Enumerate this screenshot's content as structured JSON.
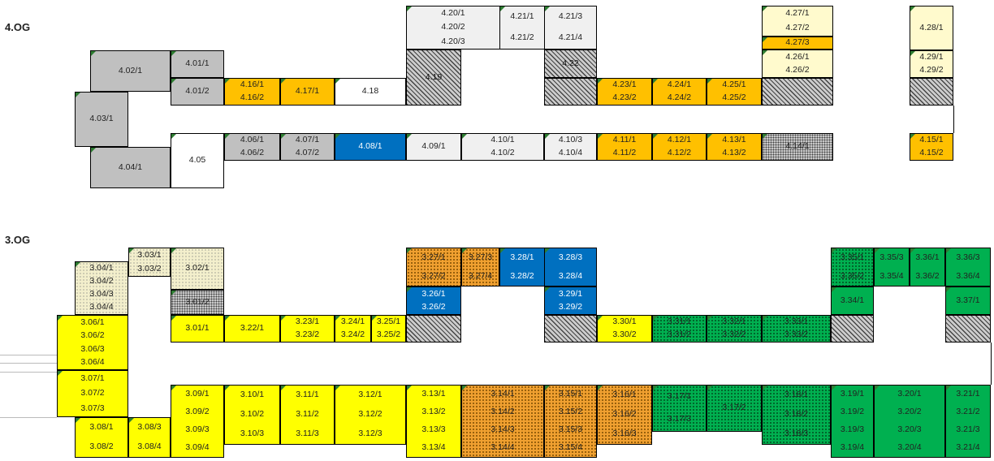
{
  "floors": [
    {
      "id": "4og",
      "label": "4.OG"
    },
    {
      "id": "3og",
      "label": "3.OG"
    }
  ],
  "rooms": [
    {
      "id": "r4_20",
      "labels": [
        "4.20/1",
        "4.20/2",
        "4.20/3"
      ]
    },
    {
      "id": "r4_21a",
      "labels": [
        "4.21/1",
        "4.21/2"
      ]
    },
    {
      "id": "r4_21b",
      "labels": [
        "4.21/3",
        "4.21/4"
      ]
    },
    {
      "id": "r4_27_12",
      "labels": [
        "4.27/1",
        "4.27/2"
      ]
    },
    {
      "id": "r4_27_3",
      "labels": [
        "4.27/3"
      ]
    },
    {
      "id": "r4_26",
      "labels": [
        "4.26/1",
        "4.26/2"
      ]
    },
    {
      "id": "r4_28",
      "labels": [
        "4.28/1"
      ]
    },
    {
      "id": "r4_29",
      "labels": [
        "4.29/1",
        "4.29/2"
      ]
    },
    {
      "id": "r4_02",
      "labels": [
        "4.02/1"
      ]
    },
    {
      "id": "r4_01_1",
      "labels": [
        "4.01/1"
      ]
    },
    {
      "id": "r4_01_2",
      "labels": [
        "4.01/2"
      ]
    },
    {
      "id": "r4_19",
      "labels": [
        "4.19"
      ]
    },
    {
      "id": "r4_22",
      "labels": [
        "4.22"
      ]
    },
    {
      "id": "r4_16",
      "labels": [
        "4.16/1",
        "4.16/2"
      ]
    },
    {
      "id": "r4_17",
      "labels": [
        "4.17/1"
      ]
    },
    {
      "id": "r4_18",
      "labels": [
        "4.18"
      ]
    },
    {
      "id": "r4_23",
      "labels": [
        "4.23/1",
        "4.23/2"
      ]
    },
    {
      "id": "r4_24",
      "labels": [
        "4.24/1",
        "4.24/2"
      ]
    },
    {
      "id": "r4_25",
      "labels": [
        "4.25/1",
        "4.25/2"
      ]
    },
    {
      "id": "r4_03",
      "labels": [
        "4.03/1"
      ]
    },
    {
      "id": "r4_06",
      "labels": [
        "4.06/1",
        "4.06/2"
      ]
    },
    {
      "id": "r4_07",
      "labels": [
        "4.07/1",
        "4.07/2"
      ]
    },
    {
      "id": "r4_08",
      "labels": [
        "4.08/1"
      ]
    },
    {
      "id": "r4_09",
      "labels": [
        "4.09/1"
      ]
    },
    {
      "id": "r4_10a",
      "labels": [
        "4.10/1",
        "4.10/2"
      ]
    },
    {
      "id": "r4_10b",
      "labels": [
        "4.10/3",
        "4.10/4"
      ]
    },
    {
      "id": "r4_11",
      "labels": [
        "4.11/1",
        "4.11/2"
      ]
    },
    {
      "id": "r4_12",
      "labels": [
        "4.12/1",
        "4.12/2"
      ]
    },
    {
      "id": "r4_13",
      "labels": [
        "4.13/1",
        "4.13/2"
      ]
    },
    {
      "id": "r4_14",
      "labels": [
        "4.14/1"
      ]
    },
    {
      "id": "r4_15",
      "labels": [
        "4.15/1",
        "4.15/2"
      ]
    },
    {
      "id": "r4_04",
      "labels": [
        "4.04/1"
      ]
    },
    {
      "id": "r4_05",
      "labels": [
        "4.05"
      ]
    },
    {
      "id": "r3_03",
      "labels": [
        "3.03/1",
        "3.03/2"
      ]
    },
    {
      "id": "r3_02",
      "labels": [
        "3.02/1"
      ]
    },
    {
      "id": "r3_04",
      "labels": [
        "3.04/1",
        "3.04/2",
        "3.04/3",
        "3.04/4"
      ]
    },
    {
      "id": "r3_01_2",
      "labels": [
        "3.01/2"
      ]
    },
    {
      "id": "r3_27a",
      "labels": [
        "3.27/1",
        "3.27/2"
      ]
    },
    {
      "id": "r3_27b",
      "labels": [
        "3.27/3",
        "3.27/4"
      ]
    },
    {
      "id": "r3_28a",
      "labels": [
        "3.28/1",
        "3.28/2"
      ]
    },
    {
      "id": "r3_28b",
      "labels": [
        "3.28/3",
        "3.28/4"
      ]
    },
    {
      "id": "r3_26",
      "labels": [
        "3.26/1",
        "3.26/2"
      ]
    },
    {
      "id": "r3_29",
      "labels": [
        "3.29/1",
        "3.29/2"
      ]
    },
    {
      "id": "r3_35a",
      "labels": [
        "3.35/1",
        "3.35/2"
      ]
    },
    {
      "id": "r3_35b",
      "labels": [
        "3.35/3",
        "3.35/4"
      ]
    },
    {
      "id": "r3_36a",
      "labels": [
        "3.36/1",
        "3.36/2"
      ]
    },
    {
      "id": "r3_36b",
      "labels": [
        "3.36/3",
        "3.36/4"
      ]
    },
    {
      "id": "r3_34",
      "labels": [
        "3.34/1"
      ]
    },
    {
      "id": "r3_37",
      "labels": [
        "3.37/1"
      ]
    },
    {
      "id": "r3_06",
      "labels": [
        "3.06/1",
        "3.06/2",
        "3.06/3",
        "3.06/4"
      ]
    },
    {
      "id": "r3_01_1",
      "labels": [
        "3.01/1"
      ]
    },
    {
      "id": "r3_22",
      "labels": [
        "3.22/1"
      ]
    },
    {
      "id": "r3_23",
      "labels": [
        "3.23/1",
        "3.23/2"
      ]
    },
    {
      "id": "r3_24",
      "labels": [
        "3.24/1",
        "3.24/2"
      ]
    },
    {
      "id": "r3_25",
      "labels": [
        "3.25/1",
        "3.25/2"
      ]
    },
    {
      "id": "r3_30",
      "labels": [
        "3.30/1",
        "3.30/2"
      ]
    },
    {
      "id": "r3_31",
      "labels": [
        "3.31/1",
        "3.31/2"
      ]
    },
    {
      "id": "r3_32",
      "labels": [
        "3.32/1",
        "3.32/2"
      ]
    },
    {
      "id": "r3_33",
      "labels": [
        "3.33/1",
        "3.33/2"
      ]
    },
    {
      "id": "r3_07",
      "labels": [
        "3.07/1",
        "3.07/2",
        "3.07/3"
      ]
    },
    {
      "id": "r3_09",
      "labels": [
        "3.09/1",
        "3.09/2",
        "3.09/3",
        "3.09/4"
      ]
    },
    {
      "id": "r3_10",
      "labels": [
        "3.10/1",
        "3.10/2",
        "3.10/3"
      ]
    },
    {
      "id": "r3_11",
      "labels": [
        "3.11/1",
        "3.11/2",
        "3.11/3"
      ]
    },
    {
      "id": "r3_12",
      "labels": [
        "3.12/1",
        "3.12/2",
        "3.12/3"
      ]
    },
    {
      "id": "r3_13",
      "labels": [
        "3.13/1",
        "3.13/2",
        "3.13/3",
        "3.13/4"
      ]
    },
    {
      "id": "r3_14",
      "labels": [
        "3.14/1",
        "3.14/2",
        "3.14/3",
        "3.14/4"
      ]
    },
    {
      "id": "r3_15",
      "labels": [
        "3.15/1",
        "3.15/2",
        "3.15/3",
        "3.15/4"
      ]
    },
    {
      "id": "r3_16",
      "labels": [
        "3.16/1",
        "3.16/2",
        "3.16/3"
      ]
    },
    {
      "id": "r3_17a",
      "labels": [
        "3.17/1",
        "3.17/3"
      ]
    },
    {
      "id": "r3_17b",
      "labels": [
        "3.17/2"
      ]
    },
    {
      "id": "r3_18",
      "labels": [
        "3.18/1",
        "3.18/2",
        "3.18/3"
      ]
    },
    {
      "id": "r3_19",
      "labels": [
        "3.19/1",
        "3.19/2",
        "3.19/3",
        "3.19/4"
      ]
    },
    {
      "id": "r3_20",
      "labels": [
        "3.20/1",
        "3.20/2",
        "3.20/3",
        "3.20/4"
      ]
    },
    {
      "id": "r3_21",
      "labels": [
        "3.21/1",
        "3.21/2",
        "3.21/3",
        "3.21/4"
      ]
    },
    {
      "id": "r3_08a",
      "labels": [
        "3.08/1",
        "3.08/2"
      ]
    },
    {
      "id": "r3_08b",
      "labels": [
        "3.08/3",
        "3.08/4"
      ]
    }
  ]
}
